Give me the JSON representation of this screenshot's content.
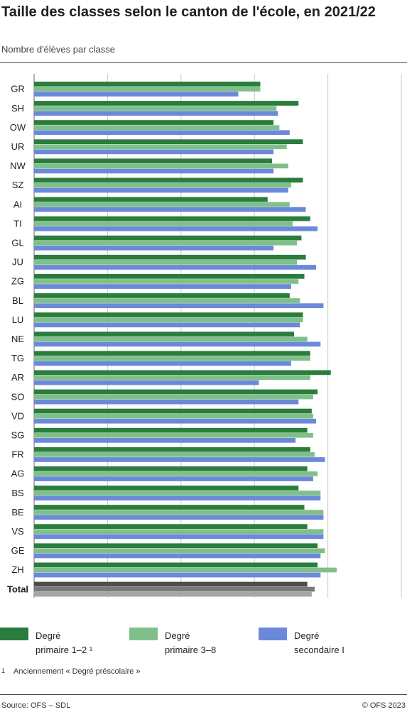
{
  "title": "Taille des classes selon le canton de l'école, en 2021/22",
  "subtitle": "Nombre d'élèves par classe",
  "chart_data": {
    "type": "bar",
    "orientation": "horizontal",
    "categories": [
      "GR",
      "SH",
      "OW",
      "UR",
      "NW",
      "SZ",
      "AI",
      "TI",
      "GL",
      "JU",
      "ZG",
      "BL",
      "LU",
      "NE",
      "TG",
      "AR",
      "SO",
      "VD",
      "SG",
      "FR",
      "AG",
      "BS",
      "BE",
      "VS",
      "GE",
      "ZH",
      "Total"
    ],
    "series": [
      {
        "name": "Degré primaire 1–2 ¹",
        "color": "#2a7d3c",
        "total_color": "#4d4d4d",
        "values": [
          15.4,
          18.0,
          16.3,
          18.3,
          16.2,
          18.3,
          15.9,
          18.8,
          18.2,
          18.5,
          18.4,
          17.4,
          18.3,
          17.7,
          18.8,
          20.2,
          19.3,
          18.9,
          18.6,
          18.8,
          18.6,
          18.0,
          18.4,
          18.6,
          19.3,
          19.3,
          18.6
        ]
      },
      {
        "name": "Degré primaire 3–8",
        "color": "#7fc08a",
        "total_color": "#7a7a7a",
        "values": [
          15.4,
          16.5,
          16.7,
          17.2,
          17.3,
          17.5,
          17.4,
          17.6,
          17.9,
          17.9,
          18.0,
          18.1,
          18.3,
          18.6,
          18.8,
          18.8,
          19.0,
          19.0,
          19.0,
          19.1,
          19.3,
          19.5,
          19.7,
          19.7,
          19.8,
          20.6,
          19.1
        ]
      },
      {
        "name": "Degré secondaire I",
        "color": "#6b89d8",
        "total_color": "#a6a6a6",
        "values": [
          13.9,
          16.6,
          17.4,
          16.3,
          16.3,
          17.3,
          18.5,
          19.3,
          16.3,
          19.2,
          17.5,
          19.7,
          18.1,
          19.5,
          17.5,
          15.3,
          18.0,
          19.2,
          17.8,
          19.8,
          19.0,
          19.5,
          19.7,
          19.7,
          19.5,
          19.5,
          18.9
        ]
      }
    ],
    "xlim": [
      0,
      25
    ],
    "xticks": [
      "0",
      "5",
      "10",
      "15",
      "20",
      "25"
    ],
    "xlabel": "",
    "ylabel": "",
    "grid": "vertical",
    "legend": "bottom"
  },
  "legend": {
    "items": [
      {
        "label": "Degré\nprimaire 1–2 ¹"
      },
      {
        "label": "Degré\nprimaire 3–8"
      },
      {
        "label": "Degré\nsecondaire I"
      }
    ]
  },
  "footnote": {
    "marker": "1",
    "text": "Anciennement « Degré préscolaire »"
  },
  "footer": {
    "source": "Source: OFS – SDL",
    "copyright": "© OFS 2023"
  }
}
